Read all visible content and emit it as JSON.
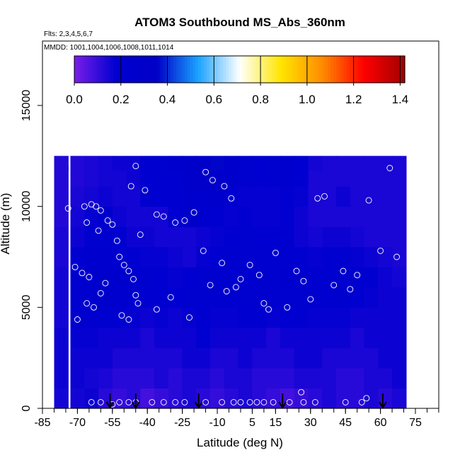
{
  "chart_data": {
    "type": "heatmap",
    "title": "ATOM3 Southbound MS_Abs_360nm",
    "subtitle_flights": "Flts: 2,3,4,5,6,7",
    "subtitle_dates": "MMDD: 1001,1004,1006,1008,1011,1014",
    "xlabel": "Latitude (deg N)",
    "ylabel": "Altitude (m)",
    "xlim": [
      -85,
      85
    ],
    "ylim": [
      0,
      18000
    ],
    "x_ticks": [
      "-85",
      "-70",
      "-55",
      "-40",
      "-25",
      "-10",
      "5",
      "15",
      "30",
      "45",
      "60",
      "75"
    ],
    "x_tick_values": [
      -85,
      -70,
      -55,
      -40,
      -25,
      -10,
      5,
      15,
      30,
      45,
      60,
      75
    ],
    "y_ticks": [
      "0",
      "5000",
      "10000",
      "15000"
    ],
    "y_tick_values": [
      0,
      5000,
      10000,
      15000
    ],
    "colorbar": {
      "ticks": [
        "0.0",
        "0.2",
        "0.4",
        "0.6",
        "0.8",
        "1.0",
        "1.2",
        "1.4"
      ],
      "tick_values": [
        0,
        0.2,
        0.4,
        0.6,
        0.8,
        1.0,
        1.2,
        1.4
      ],
      "range": [
        0,
        1.42
      ],
      "colors": [
        "#7a1ee8",
        "#0000d0",
        "#0000c8",
        "#1aa3ff",
        "#ffffff",
        "#ffe600",
        "#ff8c00",
        "#ff0000",
        "#a00000"
      ]
    },
    "field": {
      "lat": [
        -77,
        -70,
        -64,
        -58,
        -52,
        -46,
        -40,
        -34,
        -28,
        -22,
        -16,
        -10,
        -4,
        2,
        8,
        14,
        20,
        26,
        32,
        38,
        44,
        50,
        56,
        62,
        68
      ],
      "alt_bins": [
        500,
        1500,
        2500,
        3500,
        4500,
        5500,
        6500,
        7500,
        8500,
        9500,
        10500,
        11500,
        12300
      ],
      "values": [
        [
          0.15,
          0.15,
          0.16,
          0.12,
          0.1,
          0.12,
          0.08,
          0.1,
          0.12,
          0.14,
          0.12,
          0.1,
          0.12,
          0.14,
          0.12,
          0.1,
          0.08,
          0.1,
          0.12,
          0.14,
          0.12,
          0.12,
          0.14,
          0.12,
          0.14
        ],
        [
          0.16,
          0.16,
          0.15,
          0.14,
          0.12,
          0.12,
          0.12,
          0.14,
          0.12,
          0.14,
          0.14,
          0.12,
          0.14,
          0.14,
          0.12,
          0.12,
          0.12,
          0.14,
          0.14,
          0.14,
          0.12,
          0.12,
          0.14,
          0.14,
          0.16
        ],
        [
          0.16,
          0.16,
          0.16,
          0.16,
          0.14,
          0.14,
          0.14,
          0.14,
          0.14,
          0.16,
          0.16,
          0.14,
          0.14,
          0.16,
          0.14,
          0.14,
          0.14,
          0.16,
          0.16,
          0.14,
          0.14,
          0.14,
          0.14,
          0.16,
          0.16
        ],
        [
          0.16,
          0.17,
          0.17,
          0.16,
          0.16,
          0.16,
          0.14,
          0.16,
          0.16,
          0.16,
          0.18,
          0.16,
          0.16,
          0.16,
          0.16,
          0.14,
          0.16,
          0.16,
          0.16,
          0.16,
          0.16,
          0.14,
          0.16,
          0.16,
          0.16
        ],
        [
          0.15,
          0.18,
          0.19,
          0.19,
          0.18,
          0.17,
          0.16,
          0.17,
          0.16,
          0.17,
          0.18,
          0.17,
          0.17,
          0.18,
          0.18,
          0.17,
          0.18,
          0.18,
          0.17,
          0.17,
          0.17,
          0.16,
          0.16,
          0.16,
          0.16
        ],
        [
          0.15,
          0.19,
          0.22,
          0.24,
          0.22,
          0.19,
          0.18,
          0.18,
          0.18,
          0.19,
          0.2,
          0.19,
          0.2,
          0.2,
          0.2,
          0.19,
          0.21,
          0.2,
          0.19,
          0.19,
          0.19,
          0.18,
          0.17,
          0.16,
          0.16
        ],
        [
          0.15,
          0.2,
          0.23,
          0.25,
          0.23,
          0.2,
          0.19,
          0.18,
          0.17,
          0.18,
          0.19,
          0.19,
          0.21,
          0.21,
          0.21,
          0.2,
          0.22,
          0.2,
          0.2,
          0.21,
          0.21,
          0.2,
          0.18,
          0.16,
          0.15
        ],
        [
          0.14,
          0.18,
          0.22,
          0.23,
          0.21,
          0.18,
          0.17,
          0.17,
          0.16,
          0.15,
          0.17,
          0.18,
          0.2,
          0.21,
          0.2,
          0.19,
          0.21,
          0.18,
          0.17,
          0.18,
          0.19,
          0.17,
          0.16,
          0.15,
          0.14
        ],
        [
          0.14,
          0.16,
          0.19,
          0.2,
          0.18,
          0.16,
          0.16,
          0.15,
          0.15,
          0.15,
          0.16,
          0.17,
          0.18,
          0.19,
          0.18,
          0.18,
          0.19,
          0.16,
          0.15,
          0.16,
          0.16,
          0.15,
          0.14,
          0.14,
          0.14
        ],
        [
          0.13,
          0.15,
          0.17,
          0.24,
          0.16,
          0.15,
          0.15,
          0.15,
          0.18,
          0.3,
          0.22,
          0.18,
          0.17,
          0.18,
          0.17,
          0.17,
          0.18,
          0.16,
          0.14,
          0.14,
          0.14,
          0.14,
          0.14,
          0.14,
          0.14
        ],
        [
          0.13,
          0.14,
          0.15,
          0.16,
          0.15,
          0.15,
          0.2,
          0.18,
          0.18,
          0.22,
          0.26,
          0.24,
          0.18,
          0.17,
          0.17,
          0.17,
          0.18,
          0.17,
          0.14,
          0.14,
          0.16,
          0.14,
          0.14,
          0.14,
          0.14
        ],
        [
          0.13,
          0.13,
          0.14,
          0.15,
          0.15,
          0.16,
          0.18,
          0.18,
          0.2,
          0.26,
          0.3,
          0.32,
          0.24,
          0.2,
          0.18,
          0.2,
          0.22,
          0.18,
          0.14,
          0.14,
          0.14,
          0.14,
          0.14,
          0.14,
          0.14
        ],
        [
          0.13,
          0.13,
          0.14,
          0.15,
          0.16,
          0.16,
          0.18,
          0.19,
          0.22,
          0.28,
          0.34,
          0.36,
          0.26,
          0.2,
          0.18,
          0.2,
          0.22,
          0.18,
          0.15,
          0.14,
          0.14,
          0.14,
          0.14,
          0.14,
          0.14
        ]
      ]
    },
    "samples": [
      [
        -71,
        7000
      ],
      [
        -68,
        6700
      ],
      [
        -70,
        4400
      ],
      [
        -66,
        5200
      ],
      [
        -65,
        6500
      ],
      [
        -63,
        5000
      ],
      [
        -60,
        5700
      ],
      [
        -58,
        6200
      ],
      [
        -62,
        10000
      ],
      [
        -60,
        9800
      ],
      [
        -57,
        9300
      ],
      [
        -55,
        9100
      ],
      [
        -61,
        8800
      ],
      [
        -53,
        8300
      ],
      [
        -52,
        7500
      ],
      [
        -50,
        7100
      ],
      [
        -48,
        6800
      ],
      [
        -46,
        6400
      ],
      [
        -45,
        5600
      ],
      [
        -44,
        5200
      ],
      [
        -51,
        4600
      ],
      [
        -48,
        4400
      ],
      [
        -43,
        8600
      ],
      [
        -41,
        10800
      ],
      [
        -47,
        11000
      ],
      [
        -45,
        12000
      ],
      [
        -36,
        9600
      ],
      [
        -33,
        9500
      ],
      [
        -28,
        9200
      ],
      [
        -24,
        9300
      ],
      [
        -20,
        9700
      ],
      [
        -15,
        11700
      ],
      [
        -12,
        11300
      ],
      [
        -7,
        11000
      ],
      [
        -4,
        10400
      ],
      [
        -16,
        7800
      ],
      [
        -13,
        6100
      ],
      [
        -8,
        7200
      ],
      [
        -6,
        5800
      ],
      [
        -2,
        6000
      ],
      [
        0,
        6400
      ],
      [
        4,
        7100
      ],
      [
        8,
        6600
      ],
      [
        10,
        5200
      ],
      [
        12,
        4900
      ],
      [
        15,
        7700
      ],
      [
        20,
        5000
      ],
      [
        24,
        6800
      ],
      [
        27,
        6300
      ],
      [
        30,
        5400
      ],
      [
        33,
        10400
      ],
      [
        36,
        10500
      ],
      [
        40,
        6100
      ],
      [
        44,
        6800
      ],
      [
        47,
        5900
      ],
      [
        50,
        6600
      ],
      [
        55,
        10300
      ],
      [
        60,
        7800
      ],
      [
        64,
        11900
      ],
      [
        67,
        7500
      ],
      [
        -74,
        9900
      ],
      [
        -67,
        10000
      ],
      [
        -64,
        10100
      ],
      [
        -66,
        9200
      ],
      [
        -36,
        4900
      ],
      [
        -30,
        5500
      ],
      [
        -22,
        4500
      ],
      [
        -28,
        300
      ],
      [
        -24,
        300
      ],
      [
        -15,
        300
      ],
      [
        -8,
        300
      ],
      [
        -3,
        300
      ],
      [
        0,
        300
      ],
      [
        4,
        300
      ],
      [
        7,
        300
      ],
      [
        10,
        300
      ],
      [
        14,
        300
      ],
      [
        21,
        300
      ],
      [
        26,
        800
      ],
      [
        27,
        300
      ],
      [
        32,
        300
      ],
      [
        45,
        300
      ],
      [
        52,
        300
      ],
      [
        54,
        500
      ],
      [
        -64,
        300
      ],
      [
        -60,
        300
      ],
      [
        -55,
        200
      ],
      [
        -52,
        300
      ],
      [
        -48,
        300
      ],
      [
        -45,
        300
      ],
      [
        -38,
        300
      ],
      [
        -33,
        300
      ]
    ],
    "arrows_lat": [
      -56,
      -45,
      -18,
      18,
      61
    ]
  }
}
